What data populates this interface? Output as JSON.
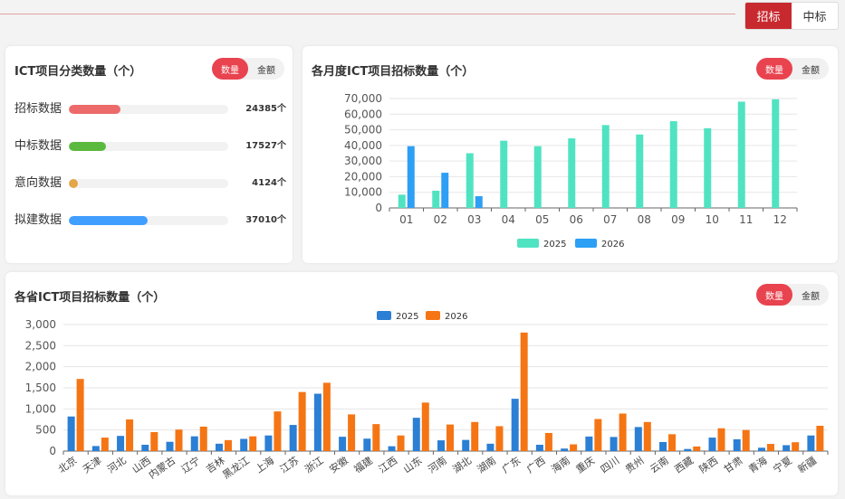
{
  "header": {
    "toggle": [
      "招标",
      "中标"
    ],
    "active": "招标"
  },
  "colors": {
    "brand_red": "#c8292f",
    "pill_active": "#e8434f",
    "bar_2025_month": "#50e3c2",
    "bar_2026_month": "#2d9ff5",
    "bar_2025_prov": "#2b7fd4",
    "bar_2026_prov": "#f57514"
  },
  "category_panel": {
    "title": "ICT项目分类数量（个）",
    "pill": [
      "数量",
      "金额"
    ],
    "items": [
      {
        "label": "招标数据",
        "value": 24385,
        "display": "24385个",
        "color": "#ec6a6a"
      },
      {
        "label": "中标数据",
        "value": 17527,
        "display": "17527个",
        "color": "#5bb93f"
      },
      {
        "label": "意向数据",
        "value": 4124,
        "display": "4124个",
        "color": "#e5a647"
      },
      {
        "label": "拟建数据",
        "value": 37010,
        "display": "37010个",
        "color": "#409eff"
      }
    ]
  },
  "monthly_panel": {
    "title": "各月度ICT项目招标数量（个）",
    "pill": [
      "数量",
      "金额"
    ]
  },
  "province_panel": {
    "title": "各省ICT项目招标数量（个）",
    "pill": [
      "数量",
      "金额"
    ]
  },
  "chart_data": [
    {
      "type": "bar",
      "title": "各月度ICT项目招标数量（个）",
      "categories": [
        "01",
        "02",
        "03",
        "04",
        "05",
        "06",
        "07",
        "08",
        "09",
        "10",
        "11",
        "12"
      ],
      "series": [
        {
          "name": "2025",
          "color": "#50e3c2",
          "values": [
            8500,
            11000,
            35000,
            43000,
            39500,
            44500,
            53000,
            47000,
            55500,
            51000,
            68000,
            69500
          ]
        },
        {
          "name": "2026",
          "color": "#2d9ff5",
          "values": [
            39500,
            22500,
            7500,
            null,
            null,
            null,
            null,
            null,
            null,
            null,
            null,
            null
          ]
        }
      ],
      "ylim": [
        0,
        70000
      ],
      "yticks": [
        0,
        10000,
        20000,
        30000,
        40000,
        50000,
        60000,
        70000
      ],
      "ytick_labels": [
        "0",
        "10,000",
        "20,000",
        "30,000",
        "40,000",
        "50,000",
        "60,000",
        "70,000"
      ],
      "grid": true,
      "legend": "bottom"
    },
    {
      "type": "bar",
      "title": "各省ICT项目招标数量（个）",
      "categories": [
        "北京",
        "天津",
        "河北",
        "山西",
        "内蒙古",
        "辽宁",
        "吉林",
        "黑龙江",
        "上海",
        "江苏",
        "浙江",
        "安徽",
        "福建",
        "江西",
        "山东",
        "河南",
        "湖北",
        "湖南",
        "广东",
        "广西",
        "海南",
        "重庆",
        "四川",
        "贵州",
        "云南",
        "西藏",
        "陕西",
        "甘肃",
        "青海",
        "宁夏",
        "新疆"
      ],
      "series": [
        {
          "name": "2025",
          "color": "#2b7fd4",
          "values": [
            820,
            120,
            360,
            150,
            220,
            350,
            175,
            290,
            370,
            620,
            1360,
            340,
            295,
            115,
            790,
            255,
            265,
            175,
            1240,
            150,
            60,
            345,
            335,
            570,
            215,
            50,
            320,
            280,
            80,
            140,
            370
          ]
        },
        {
          "name": "2026",
          "color": "#f57514",
          "values": [
            1710,
            320,
            750,
            450,
            510,
            580,
            260,
            350,
            940,
            1400,
            1620,
            870,
            640,
            370,
            1150,
            630,
            690,
            590,
            2810,
            430,
            160,
            760,
            890,
            690,
            400,
            110,
            540,
            500,
            170,
            210,
            600
          ]
        }
      ],
      "ylim": [
        0,
        3000
      ],
      "yticks": [
        0,
        500,
        1000,
        1500,
        2000,
        2500,
        3000
      ],
      "ytick_labels": [
        "0",
        "500",
        "1,000",
        "1,500",
        "2,000",
        "2,500",
        "3,000"
      ],
      "grid": true,
      "legend": "top"
    }
  ]
}
